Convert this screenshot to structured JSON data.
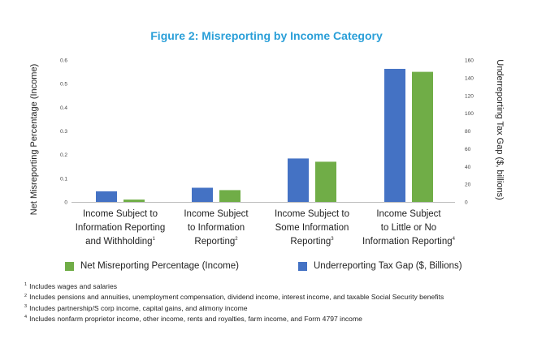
{
  "chart_data": {
    "type": "bar",
    "title": "Figure 2: Misreporting by Income Category",
    "categories": [
      {
        "lines": [
          "Income Subject to",
          "Information Reporting",
          "and Withholding"
        ],
        "footnote": "1"
      },
      {
        "lines": [
          "Income Subject",
          "to Information",
          "Reporting"
        ],
        "footnote": "2"
      },
      {
        "lines": [
          "Income Subject to",
          "Some Information",
          "Reporting"
        ],
        "footnote": "3"
      },
      {
        "lines": [
          "Income Subject",
          "to Little or No",
          "Information Reporting"
        ],
        "footnote": "4"
      }
    ],
    "series": [
      {
        "name": "Underreporting Tax Gap ($, Billions)",
        "axis": "right",
        "color": "#4472c4",
        "values": [
          12,
          16,
          49,
          150
        ]
      },
      {
        "name": "Net Misreporting Percentage (Income)",
        "axis": "left",
        "color": "#70ad47",
        "values": [
          0.01,
          0.05,
          0.17,
          0.55
        ]
      }
    ],
    "ylabel_left": "Net Misreporting Percentage (Income)",
    "ylabel_right": "Underreporting Tax Gap ($, billions)",
    "ylim_left": [
      0,
      0.6
    ],
    "ylim_right": [
      0,
      160
    ],
    "yticks_left": [
      "0",
      "0.1",
      "0.2",
      "0.3",
      "0.4",
      "0.5",
      "0.6"
    ],
    "yticks_right": [
      "0",
      "20",
      "40",
      "60",
      "80",
      "100",
      "120",
      "140",
      "160"
    ],
    "grid": false,
    "legend": [
      {
        "label": "Net Misreporting Percentage (Income)",
        "color": "#70ad47"
      },
      {
        "label": "Underreporting Tax Gap ($, Billions)",
        "color": "#4472c4"
      }
    ]
  },
  "footnotes": [
    {
      "num": "1",
      "text": "Includes wages and salaries"
    },
    {
      "num": "2",
      "text": "Includes pensions and annuities, unemployment compensation, dividend income, interest income, and taxable Social Security benefits"
    },
    {
      "num": "3",
      "text": "Includes partnership/S corp income, capital gains, and alimony income"
    },
    {
      "num": "4",
      "text": "Includes nonfarm proprietor income, other income, rents and royalties, farm income, and Form 4797 income"
    }
  ]
}
